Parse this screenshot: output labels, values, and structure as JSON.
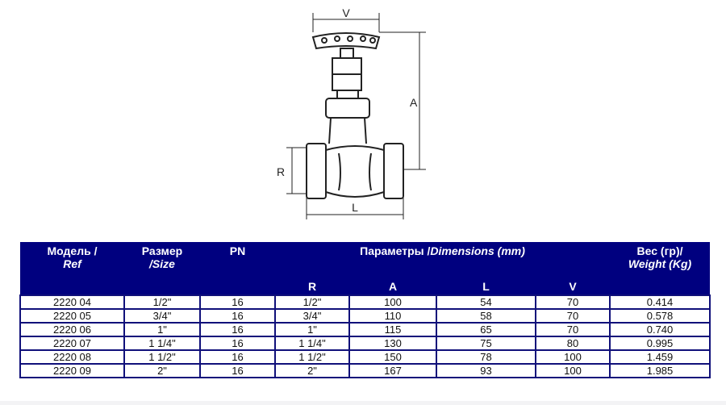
{
  "diagram": {
    "labels": {
      "v": "V",
      "a": "A",
      "r": "R",
      "l": "L"
    }
  },
  "table": {
    "headers": {
      "model": "Модель /",
      "model_en": "Ref",
      "size": "Размер",
      "size_en": "/Size",
      "pn": "PN",
      "dims": "Параметры /",
      "dims_en": "Dimensions (mm)",
      "weight": "Вес (гр)/",
      "weight_en": "Weight (Kg)",
      "r": "R",
      "a": "A",
      "l": "L",
      "v": "V"
    },
    "rows": [
      [
        "2220 04",
        "1/2\"",
        "16",
        "1/2\"",
        "100",
        "54",
        "70",
        "0.414"
      ],
      [
        "2220 05",
        "3/4\"",
        "16",
        "3/4\"",
        "110",
        "58",
        "70",
        "0.578"
      ],
      [
        "2220 06",
        "1\"",
        "16",
        "1\"",
        "115",
        "65",
        "70",
        "0.740"
      ],
      [
        "2220 07",
        "1 1/4\"",
        "16",
        "1 1/4\"",
        "130",
        "75",
        "80",
        "0.995"
      ],
      [
        "2220 08",
        "1 1/2\"",
        "16",
        "1 1/2\"",
        "150",
        "78",
        "100",
        "1.459"
      ],
      [
        "2220 09",
        "2\"",
        "16",
        "2\"",
        "167",
        "93",
        "100",
        "1.985"
      ]
    ],
    "header_color": "#00007f"
  }
}
